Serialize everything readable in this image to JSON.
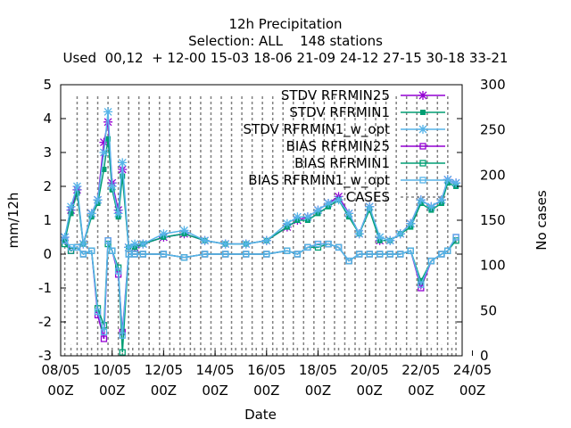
{
  "chart_data": {
    "type": "line",
    "title": "12h Precipitation",
    "subtitle": "Selection: ALL    148 stations",
    "used_line": "Used  00,12  + 12-00 15-03 18-06 21-09 24-12 27-15 30-18 33-21",
    "xlabel": "Date",
    "ylabel": "mm/12h",
    "y2label": "No cases",
    "ylim": [
      -3,
      5
    ],
    "y2lim": [
      0,
      300
    ],
    "xlim": [
      0,
      19.5
    ],
    "x_unit": "days since 08/05 00Z",
    "yticks": [
      "-3",
      "-2",
      "-1",
      "0",
      "1",
      "2",
      "3",
      "4",
      "5"
    ],
    "y2ticks": [
      "0",
      "50",
      "100",
      "150",
      "200",
      "250",
      "300"
    ],
    "xticks": [
      {
        "top": "08/05",
        "bottom": "00Z"
      },
      {
        "top": "10/05",
        "bottom": "00Z"
      },
      {
        "top": "12/05",
        "bottom": "00Z"
      },
      {
        "top": "14/05",
        "bottom": "00Z"
      },
      {
        "top": "16/05",
        "bottom": "00Z"
      },
      {
        "top": "18/05",
        "bottom": "00Z"
      },
      {
        "top": "20/05",
        "bottom": "00Z"
      },
      {
        "top": "22/05",
        "bottom": "00Z"
      },
      {
        "top": "24/05",
        "bottom": "00Z"
      }
    ],
    "legend_position": "top-right",
    "series": [
      {
        "name": "STDV RFRMIN25",
        "color": "#9400d3",
        "marker": "star",
        "axis": "y1",
        "x": [
          0.2,
          0.5,
          0.8,
          1.1,
          1.5,
          1.8,
          2.1,
          2.3,
          2.5,
          2.8,
          3.0,
          3.3,
          3.6,
          4.0,
          5.0,
          6.0,
          7.0,
          8.0,
          9.0,
          10.0,
          11.0,
          11.5,
          12.0,
          12.5,
          13.0,
          13.5,
          14.0,
          14.5,
          15.0,
          15.5,
          16.0,
          16.5,
          17.0,
          17.5,
          18.0,
          18.5,
          18.8,
          19.2
        ],
        "y": [
          0.5,
          1.3,
          1.9,
          0.3,
          1.2,
          1.6,
          3.3,
          3.9,
          2.1,
          1.3,
          2.5,
          0.2,
          0.2,
          0.3,
          0.5,
          0.6,
          0.4,
          0.3,
          0.3,
          0.4,
          0.8,
          1.0,
          1.1,
          1.3,
          1.5,
          1.7,
          1.2,
          0.6,
          1.4,
          0.4,
          0.4,
          0.6,
          0.9,
          1.6,
          1.4,
          1.6,
          2.2,
          2.1
        ]
      },
      {
        "name": "STDV RFRMIN1",
        "color": "#009e73",
        "marker": "filled-box",
        "axis": "y1",
        "x": [
          0.2,
          0.5,
          0.8,
          1.1,
          1.5,
          1.8,
          2.1,
          2.3,
          2.5,
          2.8,
          3.0,
          3.3,
          3.6,
          4.0,
          5.0,
          6.0,
          7.0,
          8.0,
          9.0,
          10.0,
          11.0,
          11.5,
          12.0,
          12.5,
          13.0,
          13.5,
          14.0,
          14.5,
          15.0,
          15.5,
          16.0,
          16.5,
          17.0,
          17.5,
          18.0,
          18.5,
          18.8,
          19.2
        ],
        "y": [
          0.4,
          1.2,
          1.8,
          0.3,
          1.1,
          1.5,
          2.5,
          3.4,
          1.9,
          1.1,
          2.3,
          0.2,
          0.2,
          0.3,
          0.5,
          0.6,
          0.4,
          0.3,
          0.3,
          0.4,
          0.8,
          1.0,
          1.0,
          1.2,
          1.4,
          1.6,
          1.1,
          0.6,
          1.3,
          0.4,
          0.4,
          0.6,
          0.8,
          1.5,
          1.3,
          1.5,
          2.1,
          2.0
        ]
      },
      {
        "name": "STDV RFRMIN1_w_opt",
        "color": "#56b4e9",
        "marker": "star",
        "axis": "y1",
        "x": [
          0.2,
          0.5,
          0.8,
          1.1,
          1.5,
          1.8,
          2.1,
          2.3,
          2.5,
          2.8,
          3.0,
          3.3,
          3.6,
          4.0,
          5.0,
          6.0,
          7.0,
          8.0,
          9.0,
          10.0,
          11.0,
          11.5,
          12.0,
          12.5,
          13.0,
          13.5,
          14.0,
          14.5,
          15.0,
          15.5,
          16.0,
          16.5,
          17.0,
          17.5,
          18.0,
          18.5,
          18.8,
          19.2
        ],
        "y": [
          0.5,
          1.4,
          2.0,
          0.3,
          1.2,
          1.6,
          3.0,
          4.2,
          2.0,
          1.2,
          2.7,
          0.2,
          0.3,
          0.3,
          0.6,
          0.7,
          0.4,
          0.3,
          0.3,
          0.4,
          0.9,
          1.1,
          1.1,
          1.3,
          1.5,
          1.6,
          1.2,
          0.6,
          1.4,
          0.5,
          0.4,
          0.6,
          0.9,
          1.6,
          1.4,
          1.6,
          2.2,
          2.1
        ]
      },
      {
        "name": "BIAS RFRMIN25",
        "color": "#9400d3",
        "marker": "open-box",
        "axis": "y1",
        "x": [
          0.2,
          0.5,
          0.8,
          1.1,
          1.5,
          1.8,
          2.1,
          2.3,
          2.5,
          2.8,
          3.0,
          3.3,
          3.6,
          4.0,
          5.0,
          6.0,
          7.0,
          8.0,
          9.0,
          10.0,
          11.0,
          11.5,
          12.0,
          12.5,
          13.0,
          13.5,
          14.0,
          14.5,
          15.0,
          15.5,
          16.0,
          16.5,
          17.0,
          17.5,
          18.0,
          18.5,
          18.8,
          19.2
        ],
        "y": [
          0.4,
          0.1,
          0.2,
          0.0,
          0.1,
          -1.8,
          -2.5,
          0.4,
          0.1,
          -0.6,
          -2.3,
          0.0,
          0.0,
          0.0,
          0.0,
          -0.1,
          0.0,
          0.0,
          0.0,
          0.0,
          0.1,
          0.0,
          0.2,
          0.3,
          0.3,
          0.2,
          -0.2,
          0.0,
          0.0,
          0.0,
          0.0,
          0.0,
          0.1,
          -1.0,
          -0.2,
          0.0,
          0.1,
          0.5
        ]
      },
      {
        "name": "BIAS RFRMIN1",
        "color": "#009e73",
        "marker": "open-box",
        "axis": "y1",
        "x": [
          0.2,
          0.5,
          0.8,
          1.1,
          1.5,
          1.8,
          2.1,
          2.3,
          2.5,
          2.8,
          3.0,
          3.3,
          3.6,
          4.0,
          5.0,
          6.0,
          7.0,
          8.0,
          9.0,
          10.0,
          11.0,
          11.5,
          12.0,
          12.5,
          13.0,
          13.5,
          14.0,
          14.5,
          15.0,
          15.5,
          16.0,
          16.5,
          17.0,
          17.5,
          18.0,
          18.5,
          18.8,
          19.2
        ],
        "y": [
          0.3,
          0.1,
          0.2,
          0.0,
          0.1,
          -1.6,
          -2.1,
          0.3,
          0.1,
          -0.4,
          -2.9,
          0.0,
          0.0,
          0.0,
          0.0,
          -0.1,
          0.0,
          0.0,
          0.0,
          0.0,
          0.1,
          0.0,
          0.2,
          0.2,
          0.3,
          0.2,
          -0.2,
          0.0,
          0.0,
          0.0,
          0.0,
          0.0,
          0.1,
          -0.8,
          -0.2,
          0.0,
          0.1,
          0.4
        ]
      },
      {
        "name": "BIAS RFRMIN1_w_opt",
        "color": "#56b4e9",
        "marker": "open-box",
        "axis": "y1",
        "x": [
          0.2,
          0.5,
          0.8,
          1.1,
          1.5,
          1.8,
          2.1,
          2.3,
          2.5,
          2.8,
          3.0,
          3.3,
          3.6,
          4.0,
          5.0,
          6.0,
          7.0,
          8.0,
          9.0,
          10.0,
          11.0,
          11.5,
          12.0,
          12.5,
          13.0,
          13.5,
          14.0,
          14.5,
          15.0,
          15.5,
          16.0,
          16.5,
          17.0,
          17.5,
          18.0,
          18.5,
          18.8,
          19.2
        ],
        "y": [
          0.4,
          0.2,
          0.2,
          0.0,
          0.1,
          -1.7,
          -2.3,
          0.4,
          0.1,
          -0.5,
          -2.4,
          0.0,
          0.0,
          0.0,
          0.0,
          -0.1,
          0.0,
          0.0,
          0.0,
          0.0,
          0.1,
          0.0,
          0.2,
          0.3,
          0.3,
          0.2,
          -0.2,
          0.0,
          0.0,
          0.0,
          0.0,
          0.0,
          0.1,
          -0.9,
          -0.2,
          0.0,
          0.1,
          0.5
        ]
      },
      {
        "name": "CASES",
        "color": "#808080",
        "marker": "none",
        "style": "dashed-impulses",
        "axis": "y2",
        "x": [
          0.2,
          0.5,
          0.8,
          1.0,
          1.3,
          1.5,
          1.8,
          2.0,
          2.3,
          2.5,
          2.8,
          3.0,
          3.3,
          3.5,
          3.8,
          4.0,
          4.3,
          4.5,
          4.8,
          5.0,
          5.3,
          5.5,
          5.8,
          6.0,
          6.3,
          6.5,
          6.8,
          7.0,
          7.3,
          7.5,
          7.8,
          8.0,
          8.3,
          8.5,
          8.8,
          9.0,
          9.3,
          9.5,
          9.8,
          10.0,
          10.3,
          10.5,
          10.8,
          11.0,
          11.3,
          11.5,
          11.8,
          12.0,
          12.3,
          12.5,
          12.8,
          13.0,
          13.3,
          13.5,
          13.8,
          14.0,
          14.3,
          14.5,
          14.8,
          15.0,
          15.3,
          15.5,
          15.8,
          16.0,
          16.3,
          16.5,
          16.8,
          17.0,
          17.3,
          17.5,
          17.8,
          18.0,
          18.3,
          18.5,
          18.8,
          19.0,
          19.2
        ],
        "y": [
          130,
          12,
          290,
          12,
          290,
          12,
          290,
          12,
          290,
          12,
          290,
          12,
          290,
          12,
          290,
          12,
          290,
          12,
          290,
          12,
          290,
          12,
          290,
          12,
          290,
          12,
          290,
          12,
          290,
          12,
          290,
          12,
          290,
          12,
          290,
          12,
          290,
          12,
          290,
          12,
          290,
          12,
          290,
          12,
          290,
          12,
          290,
          12,
          290,
          12,
          290,
          12,
          290,
          12,
          290,
          12,
          290,
          12,
          290,
          12,
          290,
          12,
          290,
          12,
          290,
          12,
          290,
          12,
          290,
          12,
          290,
          12,
          290,
          12,
          290,
          12,
          130
        ]
      }
    ],
    "grid": false
  }
}
